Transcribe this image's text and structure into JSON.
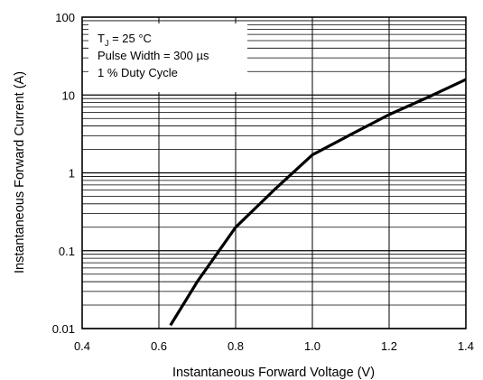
{
  "chart_data": {
    "type": "line",
    "xlabel": "Instantaneous Forward Voltage (V)",
    "ylabel": "Instantaneous Forward Current (A)",
    "x_scale": "linear",
    "y_scale": "log",
    "xlim": [
      0.4,
      1.4
    ],
    "ylim": [
      0.01,
      100
    ],
    "x_ticks": [
      "0.4",
      "0.6",
      "0.8",
      "1.0",
      "1.2",
      "1.4"
    ],
    "y_ticks": [
      "0.01",
      "0.1",
      "1",
      "10",
      "100"
    ],
    "grid": true,
    "annotation": {
      "tj_prefix": "T",
      "tj_subscript": "J",
      "tj_value": " = 25 °C",
      "line2": "Pulse Width = 300 µs",
      "line3": "1 % Duty Cycle"
    },
    "series": [
      {
        "color": "#000000",
        "x": [
          0.63,
          0.7,
          0.8,
          0.9,
          1.0,
          1.1,
          1.2,
          1.3,
          1.4
        ],
        "y": [
          0.011,
          0.04,
          0.2,
          0.6,
          1.7,
          3.1,
          5.6,
          9.3,
          15.8
        ]
      }
    ]
  }
}
